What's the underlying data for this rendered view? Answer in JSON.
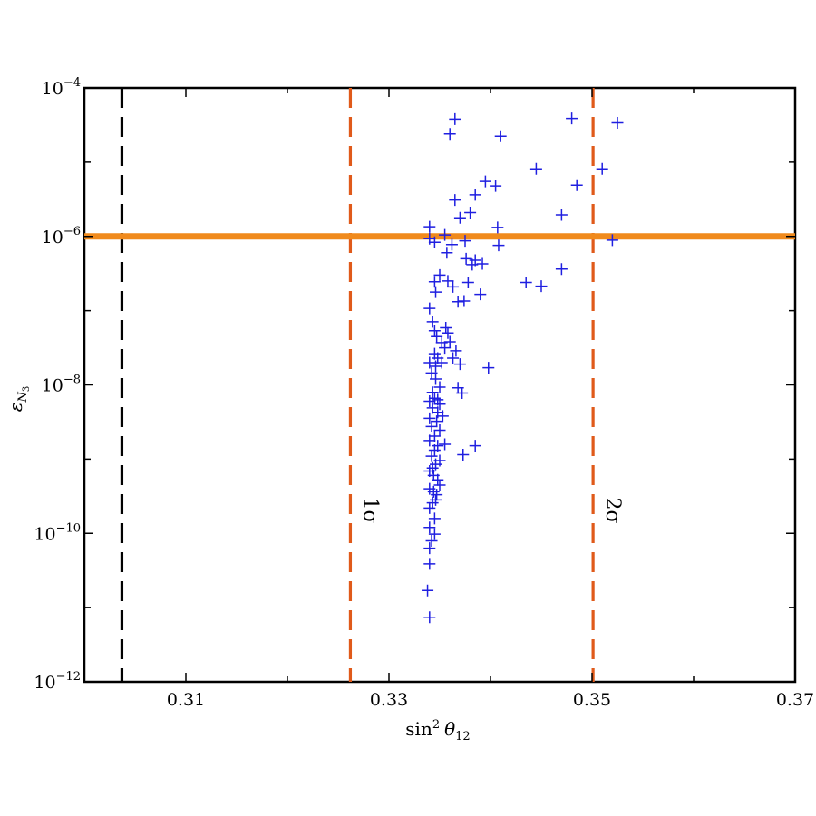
{
  "chart_data": {
    "type": "scatter",
    "xlabel_base": "sin",
    "xlabel_exp": "2",
    "xlabel_sym": "θ",
    "xlabel_sub": "12",
    "ylabel_sym": "ε",
    "ylabel_sub1": "N",
    "ylabel_sub2": "3",
    "xlim": [
      0.3,
      0.37
    ],
    "ylim_log10": [
      -12,
      -4
    ],
    "y_scale": "log",
    "x_ticks": [
      {
        "value": 0.31,
        "label": "0.31"
      },
      {
        "value": 0.33,
        "label": "0.33"
      },
      {
        "value": 0.35,
        "label": "0.35"
      },
      {
        "value": 0.37,
        "label": "0.37"
      }
    ],
    "x_minor_ticks": [
      0.3,
      0.32,
      0.34,
      0.36
    ],
    "y_ticks": [
      {
        "exp": -12,
        "base": "10",
        "sup": "−12"
      },
      {
        "exp": -10,
        "base": "10",
        "sup": "−10"
      },
      {
        "exp": -8,
        "base": "10",
        "sup": "−8"
      },
      {
        "exp": -6,
        "base": "10",
        "sup": "−6"
      },
      {
        "exp": -4,
        "base": "10",
        "sup": "−4"
      }
    ],
    "y_minor_ticks_log10": [
      -11,
      -9,
      -7,
      -5
    ],
    "grid": false,
    "series_color": "#1f1fe0",
    "reference_lines": [
      {
        "orientation": "vertical",
        "x": 0.3037,
        "color": "#000000",
        "style": "dashed",
        "label": ""
      },
      {
        "orientation": "vertical",
        "x": 0.3262,
        "color": "#e05a1a",
        "style": "dashed",
        "label": "1σ"
      },
      {
        "orientation": "vertical",
        "x": 0.3501,
        "color": "#e05a1a",
        "style": "dashed",
        "label": "2σ"
      },
      {
        "orientation": "horizontal",
        "y": 1e-06,
        "color": "#f08a1c",
        "style": "solid",
        "label": ""
      }
    ],
    "points": [
      [
        0.3365,
        -4.42
      ],
      [
        0.336,
        -4.62
      ],
      [
        0.341,
        -4.65
      ],
      [
        0.348,
        -4.41
      ],
      [
        0.3525,
        -4.47
      ],
      [
        0.3445,
        -5.09
      ],
      [
        0.351,
        -5.09
      ],
      [
        0.3485,
        -5.31
      ],
      [
        0.3395,
        -5.26
      ],
      [
        0.3405,
        -5.32
      ],
      [
        0.3385,
        -5.44
      ],
      [
        0.3365,
        -5.51
      ],
      [
        0.347,
        -5.71
      ],
      [
        0.338,
        -5.68
      ],
      [
        0.337,
        -5.75
      ],
      [
        0.3407,
        -5.88
      ],
      [
        0.334,
        -5.87
      ],
      [
        0.3355,
        -5.98
      ],
      [
        0.3375,
        -6.06
      ],
      [
        0.334,
        -6.03
      ],
      [
        0.3345,
        -6.08
      ],
      [
        0.352,
        -6.05
      ],
      [
        0.3408,
        -6.12
      ],
      [
        0.3362,
        -6.11
      ],
      [
        0.3357,
        -6.22
      ],
      [
        0.3376,
        -6.3
      ],
      [
        0.3385,
        -6.32
      ],
      [
        0.3382,
        -6.38
      ],
      [
        0.3392,
        -6.37
      ],
      [
        0.335,
        -6.52
      ],
      [
        0.3345,
        -6.61
      ],
      [
        0.3358,
        -6.6
      ],
      [
        0.3363,
        -6.68
      ],
      [
        0.3378,
        -6.62
      ],
      [
        0.347,
        -6.44
      ],
      [
        0.3435,
        -6.62
      ],
      [
        0.345,
        -6.67
      ],
      [
        0.339,
        -6.78
      ],
      [
        0.3368,
        -6.88
      ],
      [
        0.3374,
        -6.87
      ],
      [
        0.3346,
        -6.75
      ],
      [
        0.334,
        -6.97
      ],
      [
        0.3343,
        -7.15
      ],
      [
        0.3345,
        -7.27
      ],
      [
        0.3347,
        -7.35
      ],
      [
        0.3356,
        -7.23
      ],
      [
        0.3358,
        -7.3
      ],
      [
        0.336,
        -7.42
      ],
      [
        0.3352,
        -7.43
      ],
      [
        0.3355,
        -7.5
      ],
      [
        0.3345,
        -7.58
      ],
      [
        0.3348,
        -7.64
      ],
      [
        0.3366,
        -7.54
      ],
      [
        0.3363,
        -7.64
      ],
      [
        0.334,
        -7.7
      ],
      [
        0.3352,
        -7.7
      ],
      [
        0.337,
        -7.72
      ],
      [
        0.3346,
        -7.75
      ],
      [
        0.3398,
        -7.77
      ],
      [
        0.3342,
        -7.84
      ],
      [
        0.3346,
        -7.92
      ],
      [
        0.335,
        -8.03
      ],
      [
        0.3343,
        -8.1
      ],
      [
        0.3348,
        -8.2
      ],
      [
        0.3368,
        -8.04
      ],
      [
        0.3372,
        -8.11
      ],
      [
        0.3345,
        -8.18
      ],
      [
        0.334,
        -8.22
      ],
      [
        0.335,
        -8.26
      ],
      [
        0.3343,
        -8.31
      ],
      [
        0.3348,
        -8.37
      ],
      [
        0.334,
        -8.45
      ],
      [
        0.3353,
        -8.42
      ],
      [
        0.3347,
        -8.49
      ],
      [
        0.3342,
        -8.56
      ],
      [
        0.335,
        -8.61
      ],
      [
        0.3345,
        -8.69
      ],
      [
        0.334,
        -8.75
      ],
      [
        0.3355,
        -8.8
      ],
      [
        0.3348,
        -8.82
      ],
      [
        0.3345,
        -8.88
      ],
      [
        0.3342,
        -8.96
      ],
      [
        0.335,
        -9.02
      ],
      [
        0.3346,
        -9.07
      ],
      [
        0.3343,
        -9.12
      ],
      [
        0.334,
        -9.16
      ],
      [
        0.3344,
        -9.22
      ],
      [
        0.3348,
        -9.28
      ],
      [
        0.335,
        -9.35
      ],
      [
        0.334,
        -9.4
      ],
      [
        0.3344,
        -9.44
      ],
      [
        0.3347,
        -9.48
      ],
      [
        0.3385,
        -8.82
      ],
      [
        0.3373,
        -8.94
      ],
      [
        0.334,
        -9.66
      ],
      [
        0.3345,
        -9.8
      ],
      [
        0.334,
        -9.92
      ],
      [
        0.3342,
        -10.1
      ],
      [
        0.3345,
        -10.01
      ],
      [
        0.334,
        -10.2
      ],
      [
        0.3346,
        -9.55
      ],
      [
        0.3343,
        -9.59
      ],
      [
        0.334,
        -10.41
      ],
      [
        0.3338,
        -10.77
      ],
      [
        0.334,
        -11.13
      ]
    ]
  }
}
